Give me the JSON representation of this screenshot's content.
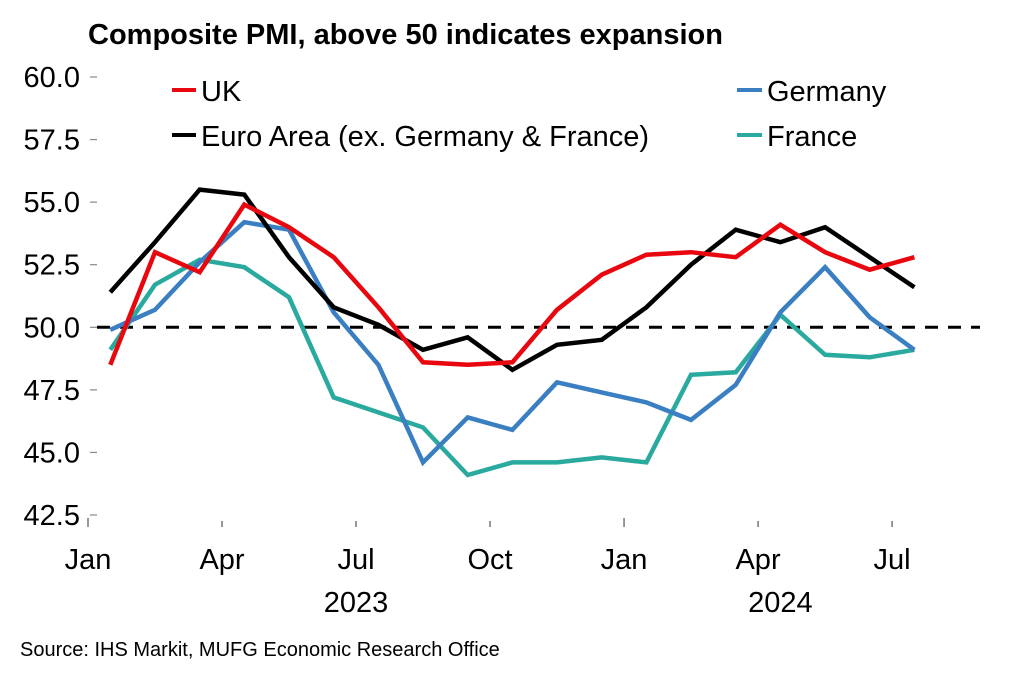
{
  "chart_data": {
    "type": "line",
    "title": "Composite PMI, above 50 indicates  expansion",
    "xlabel": "",
    "ylabel": "",
    "ylim": [
      42.5,
      60.0
    ],
    "yticks": [
      "60.0",
      "57.5",
      "55.0",
      "52.5",
      "50.0",
      "47.5",
      "45.0",
      "42.5"
    ],
    "ytick_values": [
      60.0,
      57.5,
      55.0,
      52.5,
      50.0,
      47.5,
      45.0,
      42.5
    ],
    "x": [
      "2023-01",
      "2023-02",
      "2023-03",
      "2023-04",
      "2023-05",
      "2023-06",
      "2023-07",
      "2023-08",
      "2023-09",
      "2023-10",
      "2023-11",
      "2023-12",
      "2024-01",
      "2024-02",
      "2024-03",
      "2024-04",
      "2024-05",
      "2024-06",
      "2024-07"
    ],
    "xticks": [
      {
        "label": "Jan",
        "month_index": 0
      },
      {
        "label": "Apr",
        "month_index": 3
      },
      {
        "label": "Jul",
        "month_index": 6
      },
      {
        "label": "Oct",
        "month_index": 9
      },
      {
        "label": "Jan",
        "month_index": 12
      },
      {
        "label": "Apr",
        "month_index": 15
      },
      {
        "label": "Jul",
        "month_index": 18
      }
    ],
    "year_labels": [
      {
        "label": "2023",
        "center_month_index": 6
      },
      {
        "label": "2024",
        "center_month_index": 15.5
      }
    ],
    "reference_line": {
      "value": 50.0,
      "style": "dashed",
      "color": "#000000"
    },
    "grid": false,
    "legend_placement": "top",
    "series": [
      {
        "name": "UK",
        "color": "#e8070e",
        "values": [
          48.5,
          53.0,
          52.2,
          54.9,
          54.0,
          52.8,
          50.8,
          48.6,
          48.5,
          48.6,
          50.7,
          52.1,
          52.9,
          53.0,
          52.8,
          54.1,
          53.0,
          52.3,
          52.8
        ]
      },
      {
        "name": "Germany",
        "color": "#3a7fc1",
        "values": [
          49.9,
          50.7,
          52.6,
          54.2,
          53.9,
          50.6,
          48.5,
          44.6,
          46.4,
          45.9,
          47.8,
          47.4,
          47.0,
          46.3,
          47.7,
          50.6,
          52.4,
          50.4,
          49.1
        ]
      },
      {
        "name": "Euro Area (ex. Germany & France)",
        "color": "#000000",
        "values": [
          51.4,
          53.4,
          55.5,
          55.3,
          52.8,
          50.8,
          50.1,
          49.1,
          49.6,
          48.3,
          49.3,
          49.5,
          50.8,
          52.5,
          53.9,
          53.4,
          54.0,
          52.8,
          51.6
        ]
      },
      {
        "name": "France",
        "color": "#2aaa9e",
        "values": [
          49.1,
          51.7,
          52.7,
          52.4,
          51.2,
          47.2,
          46.6,
          46.0,
          44.1,
          44.6,
          44.6,
          44.8,
          44.6,
          48.1,
          48.2,
          50.5,
          48.9,
          48.8,
          49.1
        ]
      }
    ]
  },
  "legend": {
    "items": [
      {
        "label": "UK",
        "color": "#e8070e"
      },
      {
        "label": "Germany",
        "color": "#3a7fc1"
      },
      {
        "label": "Euro Area (ex. Germany & France)",
        "color": "#000000"
      },
      {
        "label": "France",
        "color": "#2aaa9e"
      }
    ]
  },
  "source": "Source: IHS Markit, MUFG Economic Research Office"
}
